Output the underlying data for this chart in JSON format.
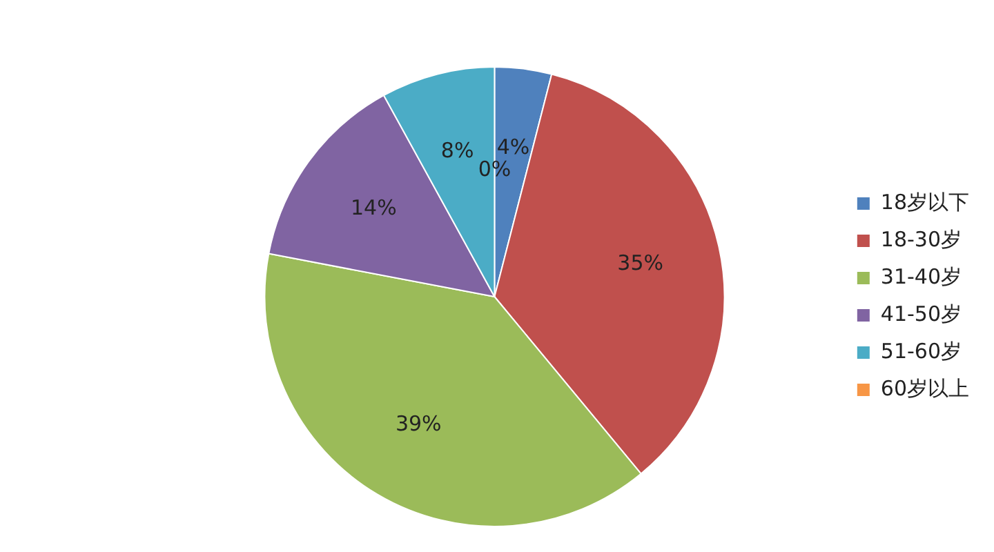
{
  "chart_data": {
    "type": "pie",
    "categories": [
      "18岁以下",
      "18-30岁",
      "31-40岁",
      "41-50岁",
      "51-60岁",
      "60岁以上"
    ],
    "values": [
      4,
      35,
      39,
      14,
      8,
      0
    ],
    "colors": [
      "#4f81bd",
      "#c0504d",
      "#9bbb59",
      "#8064a2",
      "#4bacc6",
      "#f79646"
    ],
    "value_labels": [
      "4%",
      "35%",
      "39%",
      "14%",
      "8%",
      "0%"
    ],
    "legend": "right"
  }
}
